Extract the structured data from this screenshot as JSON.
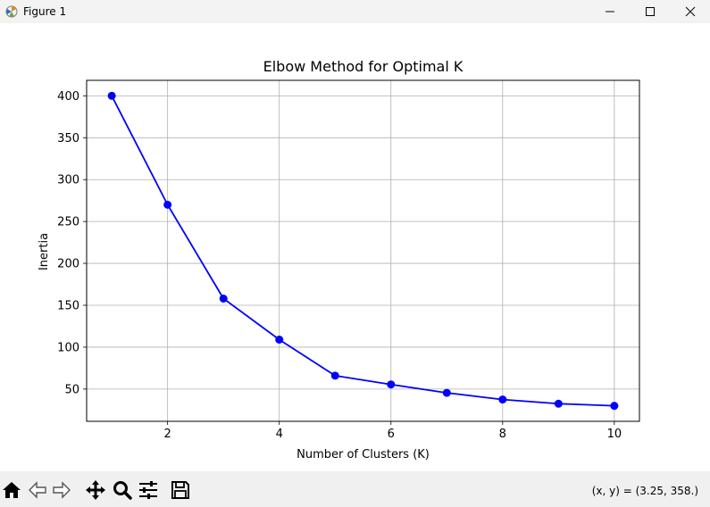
{
  "window": {
    "title": "Figure 1"
  },
  "toolbar": {
    "items": [
      "home-icon",
      "back-icon",
      "forward-icon",
      "pan-icon",
      "zoom-icon",
      "configure-icon",
      "save-icon"
    ],
    "coords_text": "(x, y) = (3.25, 358.)"
  },
  "chart_data": {
    "type": "line",
    "title": "Elbow Method for Optimal K",
    "xlabel": "Number of Clusters (K)",
    "ylabel": "Inertia",
    "x": [
      1,
      2,
      3,
      4,
      5,
      6,
      7,
      8,
      9,
      10
    ],
    "series": [
      {
        "values": [
          400,
          270,
          158,
          109,
          66,
          55.5,
          45.5,
          37.5,
          32.5,
          30
        ],
        "color": "#0000ff",
        "marker": "circle"
      }
    ],
    "xlim": [
      0.55,
      10.45
    ],
    "ylim": [
      11.5,
      418.5
    ],
    "xticks": [
      2,
      4,
      6,
      8,
      10
    ],
    "yticks": [
      50,
      100,
      150,
      200,
      250,
      300,
      350,
      400
    ],
    "grid": true
  }
}
